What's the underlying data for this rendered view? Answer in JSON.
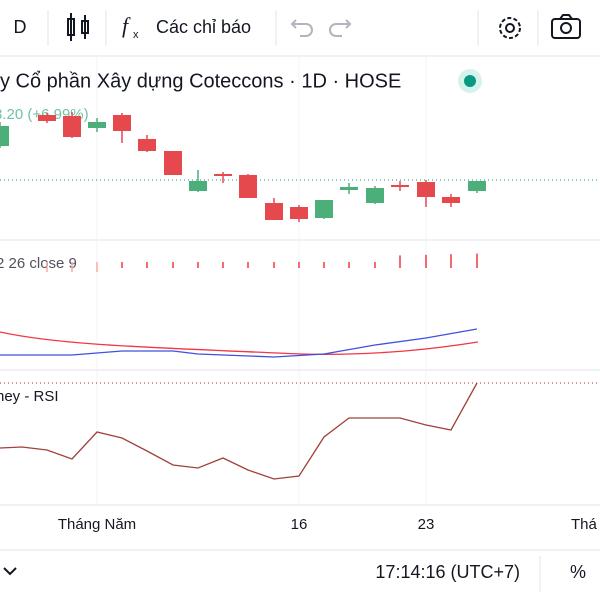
{
  "toolbar": {
    "interval": "D",
    "indicators": "Các chỉ báo"
  },
  "header": {
    "title": "y Cổ phần Xây dựng Coteccons · 1D · HOSE",
    "change": "3.20 (+6.99%)"
  },
  "panes": {
    "macd_label": "2 26 close 9",
    "rsi_label": "ney - RSI"
  },
  "time_axis": [
    "Tháng Năm",
    "16",
    "23",
    "Thá"
  ],
  "status_bar": {
    "clock": "17:14:16 (UTC+7)",
    "percent": "%"
  }
}
